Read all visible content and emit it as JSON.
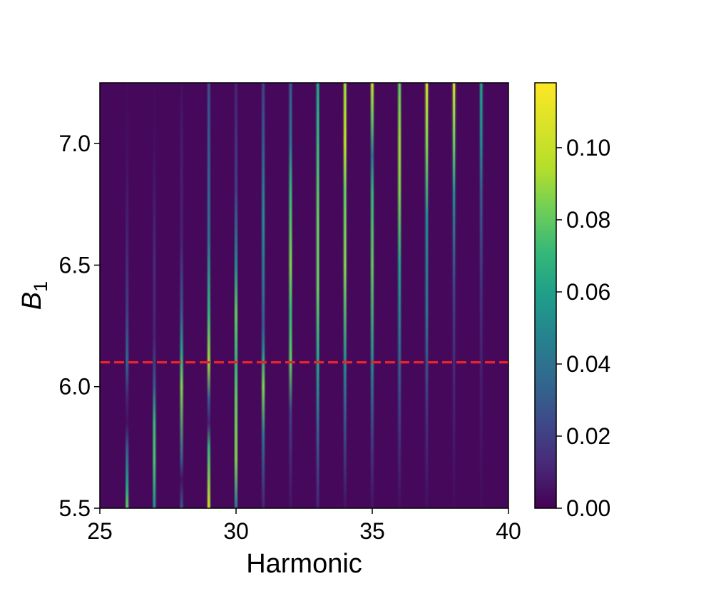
{
  "chart_data": {
    "type": "heatmap",
    "title": "",
    "xlabel": "Harmonic",
    "ylabel_base": "B",
    "ylabel_sub": "1",
    "xlim": [
      25,
      40
    ],
    "ylim": [
      5.5,
      7.25
    ],
    "x_ticks": [
      25,
      30,
      35,
      40
    ],
    "x_tick_labels": [
      "25",
      "30",
      "35",
      "40"
    ],
    "y_ticks": [
      5.5,
      6.0,
      6.5,
      7.0
    ],
    "y_tick_labels": [
      "5.5",
      "6.0",
      "6.5",
      "7.0"
    ],
    "colormap": "viridis",
    "colorbar": {
      "range": [
        0.0,
        0.118
      ],
      "ticks": [
        0.0,
        0.02,
        0.04,
        0.06,
        0.08,
        0.1
      ],
      "tick_labels": [
        "0.00",
        "0.02",
        "0.04",
        "0.06",
        "0.08",
        "0.10"
      ]
    },
    "reference_line": {
      "orientation": "horizontal",
      "y": 6.1,
      "color": "#e8232a",
      "style": "dashed"
    },
    "background_value": 0.002,
    "harmonic_lines": [
      {
        "harmonic": 26,
        "profile": [
          [
            5.5,
            0.08
          ],
          [
            5.6,
            0.06
          ],
          [
            5.75,
            0.03
          ],
          [
            5.85,
            0.005
          ],
          [
            5.95,
            0.01
          ],
          [
            6.1,
            0.035
          ],
          [
            6.3,
            0.02
          ],
          [
            6.6,
            0.01
          ],
          [
            7.0,
            0.004
          ],
          [
            7.25,
            0.003
          ]
        ]
      },
      {
        "harmonic": 27,
        "profile": [
          [
            5.5,
            0.05
          ],
          [
            5.7,
            0.075
          ],
          [
            5.85,
            0.07
          ],
          [
            6.0,
            0.03
          ],
          [
            6.2,
            0.01
          ],
          [
            6.5,
            0.012
          ],
          [
            7.0,
            0.004
          ],
          [
            7.25,
            0.003
          ]
        ]
      },
      {
        "harmonic": 28,
        "profile": [
          [
            5.5,
            0.03
          ],
          [
            5.62,
            0.005
          ],
          [
            5.7,
            0.03
          ],
          [
            6.0,
            0.085
          ],
          [
            6.15,
            0.06
          ],
          [
            6.3,
            0.03
          ],
          [
            6.6,
            0.01
          ],
          [
            7.0,
            0.008
          ],
          [
            7.25,
            0.004
          ]
        ]
      },
      {
        "harmonic": 29,
        "profile": [
          [
            5.5,
            0.1
          ],
          [
            5.75,
            0.07
          ],
          [
            5.85,
            0.01
          ],
          [
            5.95,
            0.03
          ],
          [
            6.1,
            0.09
          ],
          [
            6.3,
            0.07
          ],
          [
            6.6,
            0.04
          ],
          [
            7.0,
            0.03
          ],
          [
            7.25,
            0.025
          ]
        ]
      },
      {
        "harmonic": 30,
        "profile": [
          [
            5.5,
            0.04
          ],
          [
            5.7,
            0.085
          ],
          [
            5.95,
            0.08
          ],
          [
            6.1,
            0.07
          ],
          [
            6.3,
            0.08
          ],
          [
            6.5,
            0.05
          ],
          [
            6.8,
            0.02
          ],
          [
            7.25,
            0.01
          ]
        ]
      },
      {
        "harmonic": 31,
        "profile": [
          [
            5.5,
            0.01
          ],
          [
            5.8,
            0.04
          ],
          [
            6.0,
            0.085
          ],
          [
            6.15,
            0.05
          ],
          [
            6.25,
            0.03
          ],
          [
            6.4,
            0.04
          ],
          [
            6.7,
            0.05
          ],
          [
            7.0,
            0.03
          ],
          [
            7.25,
            0.02
          ]
        ]
      },
      {
        "harmonic": 32,
        "profile": [
          [
            5.5,
            0.005
          ],
          [
            5.9,
            0.02
          ],
          [
            6.1,
            0.08
          ],
          [
            6.3,
            0.07
          ],
          [
            6.5,
            0.085
          ],
          [
            6.8,
            0.07
          ],
          [
            7.0,
            0.04
          ],
          [
            7.25,
            0.03
          ]
        ]
      },
      {
        "harmonic": 33,
        "profile": [
          [
            5.5,
            0.01
          ],
          [
            5.8,
            0.03
          ],
          [
            6.1,
            0.06
          ],
          [
            6.4,
            0.08
          ],
          [
            6.7,
            0.08
          ],
          [
            7.0,
            0.07
          ],
          [
            7.25,
            0.06
          ]
        ]
      },
      {
        "harmonic": 34,
        "profile": [
          [
            5.5,
            0.005
          ],
          [
            5.9,
            0.03
          ],
          [
            6.1,
            0.05
          ],
          [
            6.5,
            0.085
          ],
          [
            6.8,
            0.08
          ],
          [
            7.0,
            0.095
          ],
          [
            7.25,
            0.09
          ]
        ]
      },
      {
        "harmonic": 35,
        "profile": [
          [
            5.5,
            0.005
          ],
          [
            5.8,
            0.02
          ],
          [
            6.1,
            0.05
          ],
          [
            6.5,
            0.08
          ],
          [
            6.8,
            0.07
          ],
          [
            6.95,
            0.04
          ],
          [
            7.1,
            0.08
          ],
          [
            7.25,
            0.1
          ]
        ]
      },
      {
        "harmonic": 36,
        "profile": [
          [
            5.5,
            0.004
          ],
          [
            5.9,
            0.02
          ],
          [
            6.2,
            0.04
          ],
          [
            6.5,
            0.06
          ],
          [
            6.8,
            0.085
          ],
          [
            7.0,
            0.09
          ],
          [
            7.25,
            0.08
          ]
        ]
      },
      {
        "harmonic": 37,
        "profile": [
          [
            5.5,
            0.004
          ],
          [
            5.9,
            0.015
          ],
          [
            6.3,
            0.04
          ],
          [
            6.7,
            0.05
          ],
          [
            7.0,
            0.085
          ],
          [
            7.25,
            0.1
          ]
        ]
      },
      {
        "harmonic": 38,
        "profile": [
          [
            5.5,
            0.003
          ],
          [
            6.0,
            0.01
          ],
          [
            6.4,
            0.02
          ],
          [
            6.8,
            0.05
          ],
          [
            7.0,
            0.08
          ],
          [
            7.25,
            0.1
          ]
        ]
      },
      {
        "harmonic": 39,
        "profile": [
          [
            5.5,
            0.003
          ],
          [
            6.0,
            0.008
          ],
          [
            6.4,
            0.015
          ],
          [
            6.8,
            0.03
          ],
          [
            7.0,
            0.05
          ],
          [
            7.25,
            0.06
          ]
        ]
      }
    ]
  }
}
